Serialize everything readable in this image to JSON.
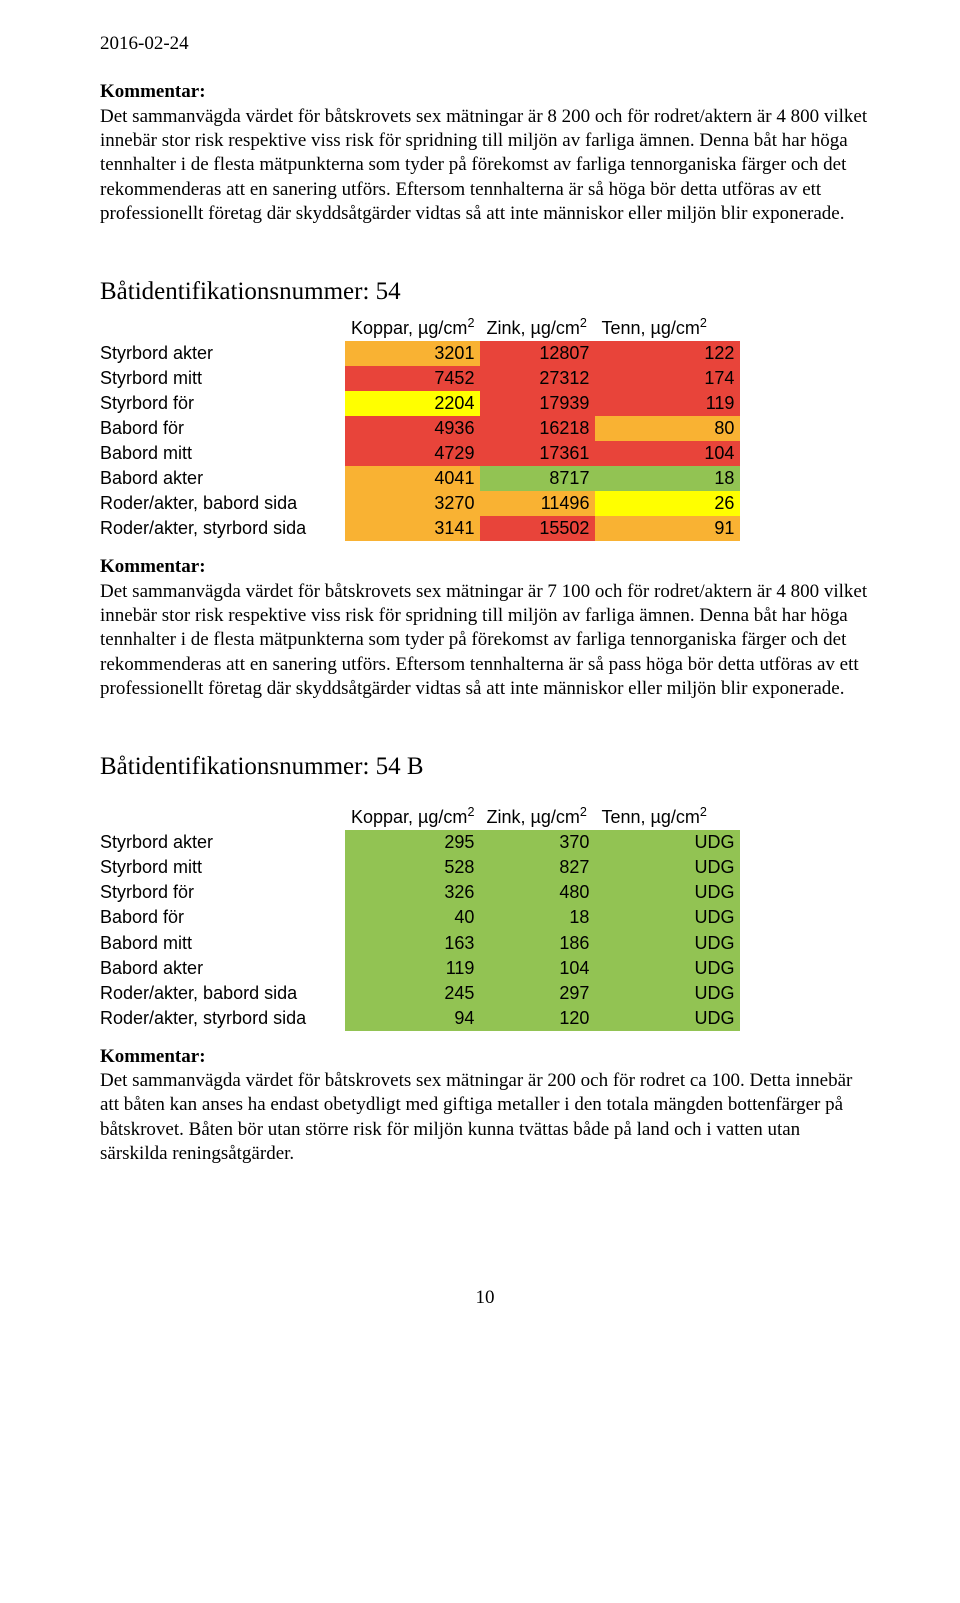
{
  "date": "2016-02-24",
  "kommentar_label": "Kommentar:",
  "intro_para": "Det sammanvägda värdet för båtskrovets sex mätningar är 8 200 och för rodret/aktern är 4 800 vilket innebär stor risk respektive viss risk för spridning till miljön av farliga ämnen. Denna båt har höga tennhalter i de flesta mätpunkterna som tyder på förekomst av farliga tennorganiska färger och det rekommenderas att en sanering utförs. Eftersom tennhalterna är så höga bör detta utföras av ett professionellt företag där skyddsåtgärder vidtas så att inte människor eller miljön blir exponerade.",
  "headers": {
    "koppar_pre": "Koppar, µg/cm",
    "zink_pre": "Zink, µg/cm",
    "tenn_pre": "Tenn, µg/cm",
    "sup2": "2"
  },
  "colors": {
    "green": "#92c353",
    "yellow": "#ffff00",
    "orange": "#f9b233",
    "red": "#e8443a"
  },
  "table54": {
    "heading": "Båtidentifikationsnummer: 54",
    "rows": [
      {
        "label": "Styrbord akter",
        "k": "3201",
        "kc": "orange",
        "z": "12807",
        "zc": "red",
        "t": "122",
        "tc": "red"
      },
      {
        "label": "Styrbord mitt",
        "k": "7452",
        "kc": "red",
        "z": "27312",
        "zc": "red",
        "t": "174",
        "tc": "red"
      },
      {
        "label": "Styrbord för",
        "k": "2204",
        "kc": "yellow",
        "z": "17939",
        "zc": "red",
        "t": "119",
        "tc": "red"
      },
      {
        "label": "Babord för",
        "k": "4936",
        "kc": "red",
        "z": "16218",
        "zc": "red",
        "t": "80",
        "tc": "orange"
      },
      {
        "label": "Babord mitt",
        "k": "4729",
        "kc": "red",
        "z": "17361",
        "zc": "red",
        "t": "104",
        "tc": "red"
      },
      {
        "label": "Babord akter",
        "k": "4041",
        "kc": "orange",
        "z": "8717",
        "zc": "green",
        "t": "18",
        "tc": "green"
      },
      {
        "label": "Roder/akter, babord sida",
        "k": "3270",
        "kc": "orange",
        "z": "11496",
        "zc": "orange",
        "t": "26",
        "tc": "yellow"
      },
      {
        "label": "Roder/akter, styrbord sida",
        "k": "3141",
        "kc": "orange",
        "z": "15502",
        "zc": "red",
        "t": "91",
        "tc": "orange"
      }
    ],
    "kommentar": "Det sammanvägda värdet för båtskrovets sex mätningar är 7 100 och för rodret/aktern är 4 800 vilket innebär stor risk respektive viss risk för spridning till miljön av farliga ämnen. Denna båt har höga tennhalter i de flesta mätpunkterna som tyder på förekomst av farliga tennorganiska färger och det rekommenderas att en sanering utförs. Eftersom tennhalterna är så pass höga bör detta utföras av ett professionellt företag där skyddsåtgärder vidtas så att inte människor eller miljön blir exponerade."
  },
  "table54B": {
    "heading": "Båtidentifikationsnummer: 54 B",
    "rows": [
      {
        "label": "Styrbord akter",
        "k": "295",
        "kc": "green",
        "z": "370",
        "zc": "green",
        "t": "UDG",
        "tc": "green"
      },
      {
        "label": "Styrbord mitt",
        "k": "528",
        "kc": "green",
        "z": "827",
        "zc": "green",
        "t": "UDG",
        "tc": "green"
      },
      {
        "label": "Styrbord för",
        "k": "326",
        "kc": "green",
        "z": "480",
        "zc": "green",
        "t": "UDG",
        "tc": "green"
      },
      {
        "label": "Babord för",
        "k": "40",
        "kc": "green",
        "z": "18",
        "zc": "green",
        "t": "UDG",
        "tc": "green"
      },
      {
        "label": "Babord mitt",
        "k": "163",
        "kc": "green",
        "z": "186",
        "zc": "green",
        "t": "UDG",
        "tc": "green"
      },
      {
        "label": "Babord akter",
        "k": "119",
        "kc": "green",
        "z": "104",
        "zc": "green",
        "t": "UDG",
        "tc": "green"
      },
      {
        "label": "Roder/akter, babord sida",
        "k": "245",
        "kc": "green",
        "z": "297",
        "zc": "green",
        "t": "UDG",
        "tc": "green"
      },
      {
        "label": "Roder/akter, styrbord sida",
        "k": "94",
        "kc": "green",
        "z": "120",
        "zc": "green",
        "t": "UDG",
        "tc": "green"
      }
    ],
    "kommentar": "Det sammanvägda värdet för båtskrovets sex mätningar är 200 och för rodret ca 100. Detta innebär att båten kan anses ha endast obetydligt med giftiga metaller i den totala mängden bottenfärger på båtskrovet. Båten bör utan större risk för miljön kunna tvättas både på land och i vatten utan särskilda reningsåtgärder."
  },
  "page_num": "10"
}
